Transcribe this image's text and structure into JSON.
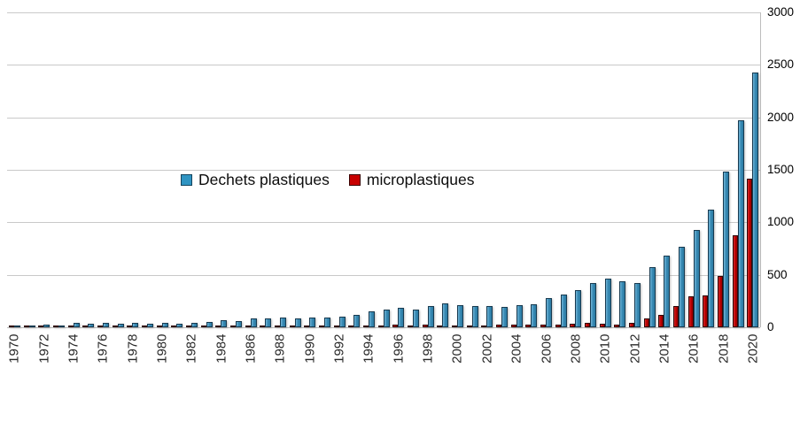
{
  "chart_data": {
    "type": "bar",
    "title": "",
    "categories": [
      1970,
      1971,
      1972,
      1973,
      1974,
      1975,
      1976,
      1977,
      1978,
      1979,
      1980,
      1981,
      1982,
      1983,
      1984,
      1985,
      1986,
      1987,
      1988,
      1989,
      1990,
      1991,
      1992,
      1993,
      1994,
      1995,
      1996,
      1997,
      1998,
      1999,
      2000,
      2001,
      2002,
      2003,
      2004,
      2005,
      2006,
      2007,
      2008,
      2009,
      2010,
      2011,
      2012,
      2013,
      2014,
      2015,
      2016,
      2017,
      2018,
      2019,
      2020
    ],
    "series": [
      {
        "name": "microplastiques",
        "color": "#c00000",
        "values": [
          5,
          5,
          6,
          5,
          6,
          6,
          6,
          5,
          6,
          6,
          7,
          6,
          7,
          7,
          8,
          7,
          8,
          8,
          9,
          9,
          10,
          10,
          12,
          14,
          14,
          14,
          23,
          17,
          28,
          17,
          17,
          17,
          17,
          23,
          23,
          28,
          23,
          23,
          34,
          40,
          34,
          25,
          45,
          85,
          120,
          200,
          295,
          300,
          490,
          875,
          1420
        ]
      },
      {
        "name": "Dechets plastiques",
        "color": "#3a8cb5",
        "values": [
          15,
          15,
          25,
          20,
          40,
          35,
          45,
          30,
          45,
          35,
          42,
          37,
          42,
          48,
          68,
          55,
          85,
          85,
          95,
          88,
          95,
          90,
          100,
          120,
          155,
          165,
          185,
          170,
          200,
          225,
          210,
          205,
          200,
          190,
          210,
          220,
          275,
          315,
          355,
          425,
          460,
          435,
          420,
          575,
          680,
          770,
          925,
          1120,
          1480,
          1975,
          2425
        ]
      }
    ],
    "bar_order_note": "within each year group the red microplastiques bar is drawn left of the blue bar",
    "xlabel": "",
    "ylabel": "",
    "x_axis": {
      "labels": [
        "1970",
        "1972",
        "1974",
        "1976",
        "1978",
        "1980",
        "1982",
        "1984",
        "1986",
        "1988",
        "1990",
        "1992",
        "1994",
        "1996",
        "1998",
        "2000",
        "2002",
        "2004",
        "2006",
        "2008",
        "2010",
        "2012",
        "2014",
        "2016",
        "2018",
        "2020"
      ],
      "label_every_n_years": 2,
      "rotation_deg": -90
    },
    "y_axis": {
      "side": "right",
      "min": 0,
      "max": 3000,
      "step": 500,
      "ticks": [
        "0",
        "500",
        "1000",
        "1500",
        "2000",
        "2500",
        "3000"
      ]
    },
    "grid": true,
    "legend_position": "inside plot, left-center"
  },
  "legend": {
    "items": [
      {
        "label": "Dechets plastiques",
        "color": "#3a8cb5"
      },
      {
        "label": "microplastiques",
        "color": "#c00000"
      }
    ]
  },
  "colors": {
    "blue_fill": "#3a8cb5",
    "blue_border": "#173a50",
    "red_fill": "#c00000",
    "red_border": "#2e0505",
    "gridline": "#c9c9c9",
    "text": "#262626",
    "background": "#ffffff"
  }
}
